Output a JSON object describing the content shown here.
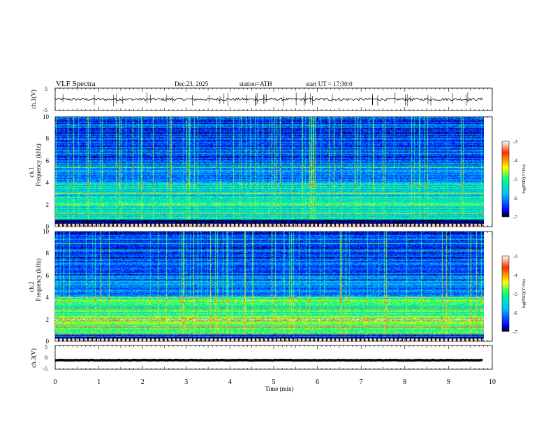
{
  "header": {
    "title": "VLF  Spectra",
    "date": "Dec.23, 2025",
    "station": "station=ATH",
    "start_ut": "start  UT  =   17:30:0"
  },
  "colorbar": {
    "label": "log(PSD)(V²/Hz)",
    "ticks": [
      "-3",
      "-4",
      "-5",
      "-6",
      "-7"
    ],
    "range": [
      -7,
      -3
    ],
    "stops": [
      "#000000",
      "#0000ff",
      "#00c0ff",
      "#00ff80",
      "#ffff00",
      "#ff3000",
      "#ffffff"
    ]
  },
  "chart_data": [
    {
      "type": "line",
      "title": "ch.1 waveform",
      "ylabel": "ch.1(V)",
      "ylim": [
        -5,
        5
      ],
      "yticks": [
        "5",
        "-5"
      ],
      "x_range_min": [
        0,
        9.8
      ],
      "baseline_v": 0,
      "noise_amplitude_v": 0.6
    },
    {
      "type": "heatmap",
      "title": "ch.1 spectrogram",
      "ylabel_channel": "ch.1",
      "ylabel": "Frequency  (kHz)",
      "ylim": [
        0,
        10
      ],
      "yticks": [
        "0",
        "2",
        "4",
        "6",
        "8",
        "10"
      ],
      "x_range_min": [
        0,
        9.8
      ],
      "zlabel": "log(PSD)(V²/Hz)",
      "zlim": [
        -7,
        -3
      ]
    },
    {
      "type": "heatmap",
      "title": "ch.2 spectrogram",
      "ylabel_channel": "ch.2",
      "ylabel": "Frequency  (kHz)",
      "ylim": [
        0,
        10
      ],
      "yticks": [
        "0",
        "2",
        "4",
        "6",
        "8",
        "10"
      ],
      "x_range_min": [
        0,
        9.8
      ],
      "zlabel": "log(PSD)(V²/Hz)",
      "zlim": [
        -7,
        -3
      ]
    },
    {
      "type": "line",
      "title": "ch.3 waveform",
      "ylabel": "ch.3(V)",
      "ylim": [
        -5,
        5
      ],
      "yticks": [
        "5",
        "0",
        "-5"
      ],
      "x_range_min": [
        0,
        9.8
      ],
      "baseline_v": -1.2,
      "noise_amplitude_v": 0.1
    }
  ],
  "xaxis": {
    "label": "Time  (min)",
    "range": [
      0,
      10
    ],
    "ticks": [
      "0",
      "1",
      "2",
      "3",
      "4",
      "5",
      "6",
      "7",
      "8",
      "9",
      "10"
    ]
  }
}
